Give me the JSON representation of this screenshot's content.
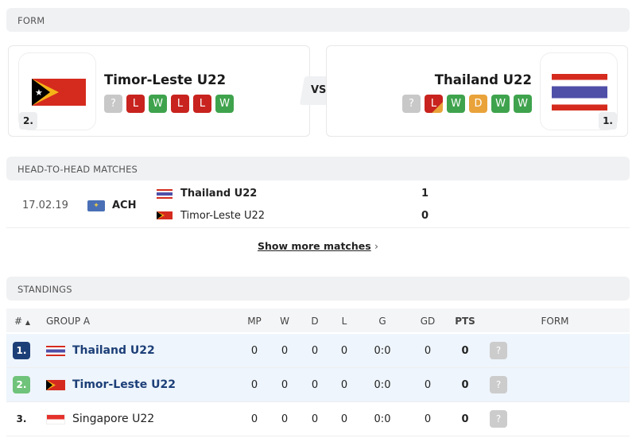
{
  "sections": {
    "form": "FORM",
    "h2h": "HEAD-TO-HEAD MATCHES",
    "standings": "STANDINGS"
  },
  "home": {
    "name": "Timor-Leste U22",
    "rank": "2.",
    "form": [
      "?",
      "L",
      "W",
      "L",
      "L",
      "W"
    ]
  },
  "away": {
    "name": "Thailand U22",
    "rank": "1.",
    "form": [
      "?",
      "L",
      "W",
      "D",
      "W",
      "W"
    ]
  },
  "vs": "VS",
  "h2h": {
    "matches": [
      {
        "date": "17.02.19",
        "competition": "ACH",
        "team1": "Thailand U22",
        "score1": "1",
        "team2": "Timor-Leste U22",
        "score2": "0"
      }
    ],
    "show_more": "Show more matches"
  },
  "standings": {
    "headers": {
      "rank": "#",
      "group": "GROUP A",
      "mp": "MP",
      "w": "W",
      "d": "D",
      "l": "L",
      "g": "G",
      "gd": "GD",
      "pts": "PTS",
      "form": "FORM"
    },
    "rows": [
      {
        "rank": "1.",
        "team": "Thailand U22",
        "mp": "0",
        "w": "0",
        "d": "0",
        "l": "0",
        "g": "0:0",
        "gd": "0",
        "pts": "0",
        "form": "?"
      },
      {
        "rank": "2.",
        "team": "Timor-Leste U22",
        "mp": "0",
        "w": "0",
        "d": "0",
        "l": "0",
        "g": "0:0",
        "gd": "0",
        "pts": "0",
        "form": "?"
      },
      {
        "rank": "3.",
        "team": "Singapore U22",
        "mp": "0",
        "w": "0",
        "d": "0",
        "l": "0",
        "g": "0:0",
        "gd": "0",
        "pts": "0",
        "form": "?"
      }
    ]
  },
  "colors": {
    "win": "#3fa34d",
    "loss": "#c8231e",
    "draw": "#e9a33a",
    "rank1": "#1d3f78",
    "rank2": "#6fc37a",
    "highlight": "#eef5fc"
  }
}
